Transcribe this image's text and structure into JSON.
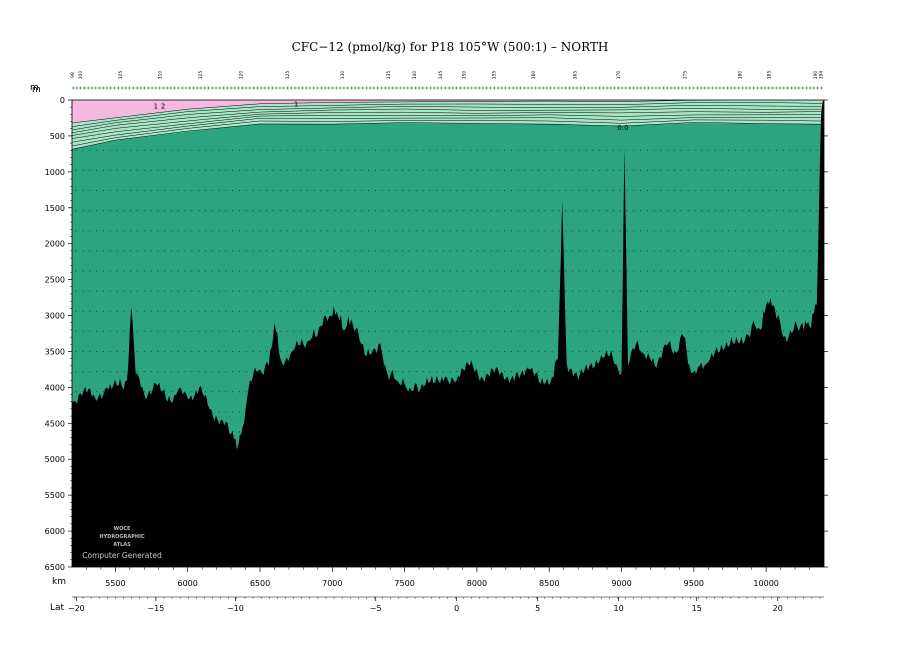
{
  "title": "CFC−12 (pmol/kg) for P18 105°W (500:1) – NORTH",
  "watermark": {
    "line1": "WOCE",
    "line2": "HYDROGRAPHIC",
    "line3": "ATLAS",
    "line4": "Computer Generated"
  },
  "colors": {
    "deep": "#2ca47f",
    "mid": "#a8e6c8",
    "surface": "#f6b8df",
    "bathymetry": "#000000"
  },
  "chart_data": {
    "type": "heatmap",
    "title": "CFC−12 (pmol/kg) for P18 105°W (500:1) – NORTH",
    "depth_axis": {
      "label": "m",
      "range": [
        0,
        6500
      ],
      "ticks": [
        0,
        500,
        1000,
        1500,
        2000,
        2500,
        3000,
        3500,
        4000,
        4500,
        5000,
        5500,
        6000,
        6500
      ]
    },
    "km_axis": {
      "label": "km",
      "range": [
        5200,
        10400
      ],
      "ticks": [
        5500,
        6000,
        6500,
        7000,
        7500,
        8000,
        8500,
        9000,
        9500,
        10000
      ]
    },
    "lat_axis": {
      "label": "Lat",
      "ticks": [
        {
          "label": "−20",
          "km": 5230
        },
        {
          "label": "−15",
          "km": 5780
        },
        {
          "label": "−10",
          "km": 6330
        },
        {
          "label": "−5",
          "km": 7300
        },
        {
          "label": "0",
          "km": 7860
        },
        {
          "label": "5",
          "km": 8420
        },
        {
          "label": "10",
          "km": 8980
        },
        {
          "label": "15",
          "km": 9520
        },
        {
          "label": "20",
          "km": 10080
        }
      ]
    },
    "stations": [
      {
        "label": "98",
        "km": 5215
      },
      {
        "label": "100",
        "km": 5270
      },
      {
        "label": "105",
        "km": 5545
      },
      {
        "label": "110",
        "km": 5820
      },
      {
        "label": "115",
        "km": 6100
      },
      {
        "label": "120",
        "km": 6380
      },
      {
        "label": "125",
        "km": 6700
      },
      {
        "label": "130",
        "km": 7080
      },
      {
        "label": "135",
        "km": 7400
      },
      {
        "label": "140",
        "km": 7580
      },
      {
        "label": "145",
        "km": 7760
      },
      {
        "label": "150",
        "km": 7920
      },
      {
        "label": "155",
        "km": 8130
      },
      {
        "label": "160",
        "km": 8400
      },
      {
        "label": "165",
        "km": 8690
      },
      {
        "label": "170",
        "km": 8990
      },
      {
        "label": "175",
        "km": 9450
      },
      {
        "label": "180",
        "km": 9830
      },
      {
        "label": "185",
        "km": 10030
      },
      {
        "label": "190",
        "km": 10350
      },
      {
        "label": "194",
        "km": 10390
      }
    ],
    "contour_labels": [
      {
        "text": "1",
        "km": 5780,
        "depth": 120
      },
      {
        "text": "2",
        "km": 5830,
        "depth": 120
      },
      {
        "text": "1",
        "km": 6750,
        "depth": 90
      },
      {
        "text": "0.0",
        "km": 9010,
        "depth": 420
      }
    ],
    "bathymetry_profile": [
      [
        5200,
        4200
      ],
      [
        5280,
        4050
      ],
      [
        5360,
        4150
      ],
      [
        5440,
        4000
      ],
      [
        5520,
        3980
      ],
      [
        5580,
        3900
      ],
      [
        5610,
        2880
      ],
      [
        5640,
        3800
      ],
      [
        5700,
        4100
      ],
      [
        5780,
        3950
      ],
      [
        5860,
        4200
      ],
      [
        5930,
        4050
      ],
      [
        6000,
        4150
      ],
      [
        6080,
        4000
      ],
      [
        6150,
        4300
      ],
      [
        6230,
        4450
      ],
      [
        6300,
        4650
      ],
      [
        6350,
        4800
      ],
      [
        6390,
        4500
      ],
      [
        6430,
        3900
      ],
      [
        6500,
        3750
      ],
      [
        6560,
        3700
      ],
      [
        6600,
        3100
      ],
      [
        6650,
        3650
      ],
      [
        6720,
        3500
      ],
      [
        6800,
        3400
      ],
      [
        6860,
        3300
      ],
      [
        6920,
        3150
      ],
      [
        6990,
        3000
      ],
      [
        7030,
        2950
      ],
      [
        7080,
        3200
      ],
      [
        7130,
        3050
      ],
      [
        7200,
        3400
      ],
      [
        7260,
        3550
      ],
      [
        7320,
        3400
      ],
      [
        7380,
        3800
      ],
      [
        7440,
        3900
      ],
      [
        7500,
        3950
      ],
      [
        7560,
        4050
      ],
      [
        7620,
        3950
      ],
      [
        7700,
        3950
      ],
      [
        7780,
        3850
      ],
      [
        7860,
        3900
      ],
      [
        7950,
        3700
      ],
      [
        8030,
        3850
      ],
      [
        8110,
        3750
      ],
      [
        8190,
        3900
      ],
      [
        8270,
        3800
      ],
      [
        8360,
        3750
      ],
      [
        8440,
        3950
      ],
      [
        8520,
        3850
      ],
      [
        8560,
        3600
      ],
      [
        8590,
        1400
      ],
      [
        8620,
        3650
      ],
      [
        8700,
        3900
      ],
      [
        8780,
        3700
      ],
      [
        8860,
        3550
      ],
      [
        8940,
        3600
      ],
      [
        9000,
        3800
      ],
      [
        9020,
        650
      ],
      [
        9045,
        3700
      ],
      [
        9100,
        3400
      ],
      [
        9160,
        3550
      ],
      [
        9230,
        3700
      ],
      [
        9300,
        3400
      ],
      [
        9370,
        3500
      ],
      [
        9430,
        3300
      ],
      [
        9480,
        3800
      ],
      [
        9540,
        3700
      ],
      [
        9600,
        3650
      ],
      [
        9680,
        3500
      ],
      [
        9760,
        3300
      ],
      [
        9840,
        3400
      ],
      [
        9900,
        3150
      ],
      [
        9960,
        3200
      ],
      [
        10010,
        2800
      ],
      [
        10060,
        2900
      ],
      [
        10120,
        3300
      ],
      [
        10190,
        3200
      ],
      [
        10250,
        3100
      ],
      [
        10300,
        3150
      ],
      [
        10350,
        2850
      ],
      [
        10380,
        200
      ],
      [
        10400,
        0
      ]
    ],
    "layers": [
      {
        "name": "surface-layer",
        "depth_profile": [
          [
            5200,
            320
          ],
          [
            5500,
            240
          ],
          [
            6000,
            130
          ],
          [
            6500,
            60
          ],
          [
            7000,
            30
          ],
          [
            7500,
            20
          ],
          [
            8000,
            25
          ],
          [
            8500,
            20
          ],
          [
            9000,
            15
          ],
          [
            9500,
            0
          ],
          [
            10000,
            0
          ],
          [
            10400,
            0
          ]
        ]
      },
      {
        "name": "transition-layer",
        "depth_profile": [
          [
            5200,
            680
          ],
          [
            5500,
            560
          ],
          [
            6000,
            440
          ],
          [
            6500,
            330
          ],
          [
            7000,
            330
          ],
          [
            7500,
            320
          ],
          [
            8000,
            330
          ],
          [
            8500,
            330
          ],
          [
            9000,
            360
          ],
          [
            9500,
            320
          ],
          [
            10000,
            330
          ],
          [
            10400,
            330
          ]
        ]
      }
    ]
  }
}
